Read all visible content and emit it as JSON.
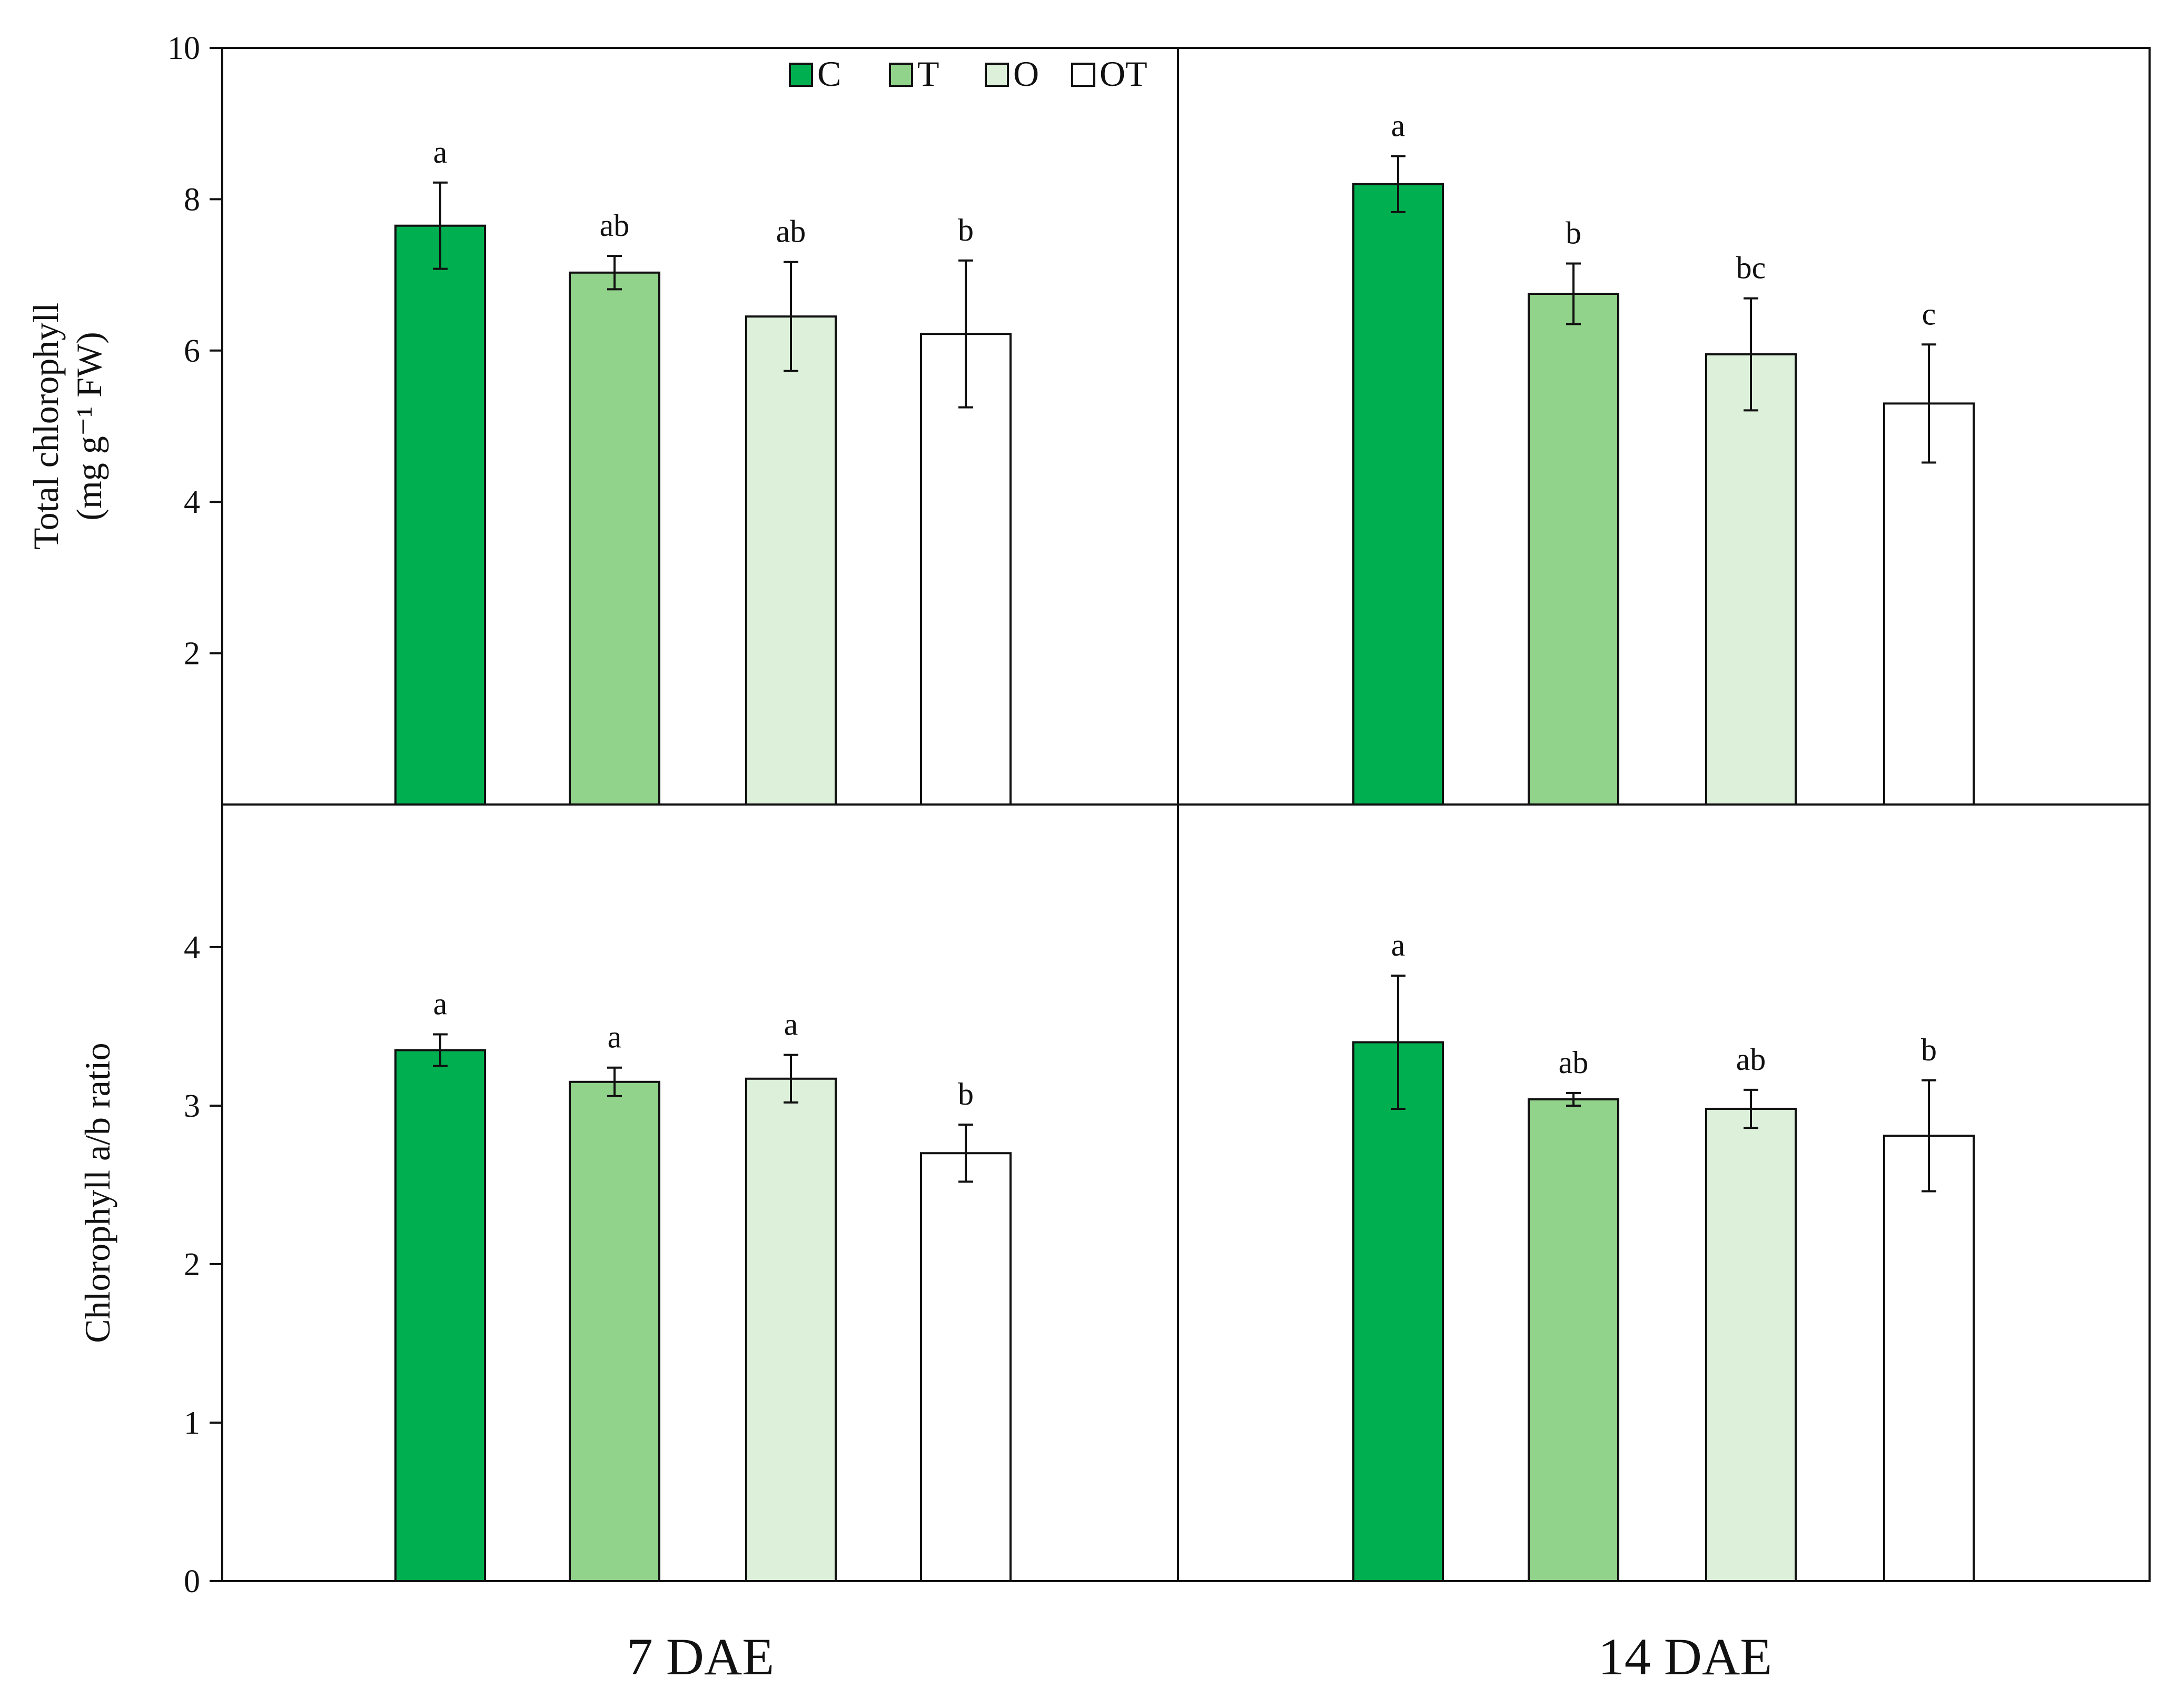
{
  "chart_data": {
    "type": "bar",
    "groups": [
      "7 DAE",
      "14 DAE"
    ],
    "legend": [
      {
        "key": "C",
        "label": "C",
        "color": "#00b050"
      },
      {
        "key": "T",
        "label": "T",
        "color": "#92d38b"
      },
      {
        "key": "O",
        "label": "O",
        "color": "#dcf0da"
      },
      {
        "key": "OT",
        "label": "OT",
        "color": "#ffffff"
      }
    ],
    "panels": [
      {
        "id": "total-chlorophyll",
        "ylabel_lines": [
          "Total chlorophyll",
          "(mg g⁻¹ FW)"
        ],
        "ylim": [
          0,
          10
        ],
        "yticks": [
          2,
          4,
          6,
          8,
          10
        ],
        "data": {
          "7 DAE": [
            {
              "treatment": "C",
              "value": 7.65,
              "error": 0.57,
              "letter": "a"
            },
            {
              "treatment": "T",
              "value": 7.03,
              "error": 0.22,
              "letter": "ab"
            },
            {
              "treatment": "O",
              "value": 6.45,
              "error": 0.72,
              "letter": "ab"
            },
            {
              "treatment": "OT",
              "value": 6.22,
              "error": 0.97,
              "letter": "b"
            }
          ],
          "14 DAE": [
            {
              "treatment": "C",
              "value": 8.2,
              "error": 0.37,
              "letter": "a"
            },
            {
              "treatment": "T",
              "value": 6.75,
              "error": 0.4,
              "letter": "b"
            },
            {
              "treatment": "O",
              "value": 5.95,
              "error": 0.74,
              "letter": "bc"
            },
            {
              "treatment": "OT",
              "value": 5.3,
              "error": 0.78,
              "letter": "c"
            }
          ]
        }
      },
      {
        "id": "chlorophyll-ab-ratio",
        "ylabel_lines": [
          "Chlorophyll a/b ratio"
        ],
        "ylim": [
          0,
          4.9
        ],
        "yticks": [
          0,
          1,
          2,
          3,
          4
        ],
        "data": {
          "7 DAE": [
            {
              "treatment": "C",
              "value": 3.35,
              "error": 0.1,
              "letter": "a"
            },
            {
              "treatment": "T",
              "value": 3.15,
              "error": 0.09,
              "letter": "a"
            },
            {
              "treatment": "O",
              "value": 3.17,
              "error": 0.15,
              "letter": "a"
            },
            {
              "treatment": "OT",
              "value": 2.7,
              "error": 0.18,
              "letter": "b"
            }
          ],
          "14 DAE": [
            {
              "treatment": "C",
              "value": 3.4,
              "error": 0.42,
              "letter": "a"
            },
            {
              "treatment": "T",
              "value": 3.04,
              "error": 0.04,
              "letter": "ab"
            },
            {
              "treatment": "O",
              "value": 2.98,
              "error": 0.12,
              "letter": "ab"
            },
            {
              "treatment": "OT",
              "value": 2.81,
              "error": 0.35,
              "letter": "b"
            }
          ]
        }
      }
    ]
  }
}
